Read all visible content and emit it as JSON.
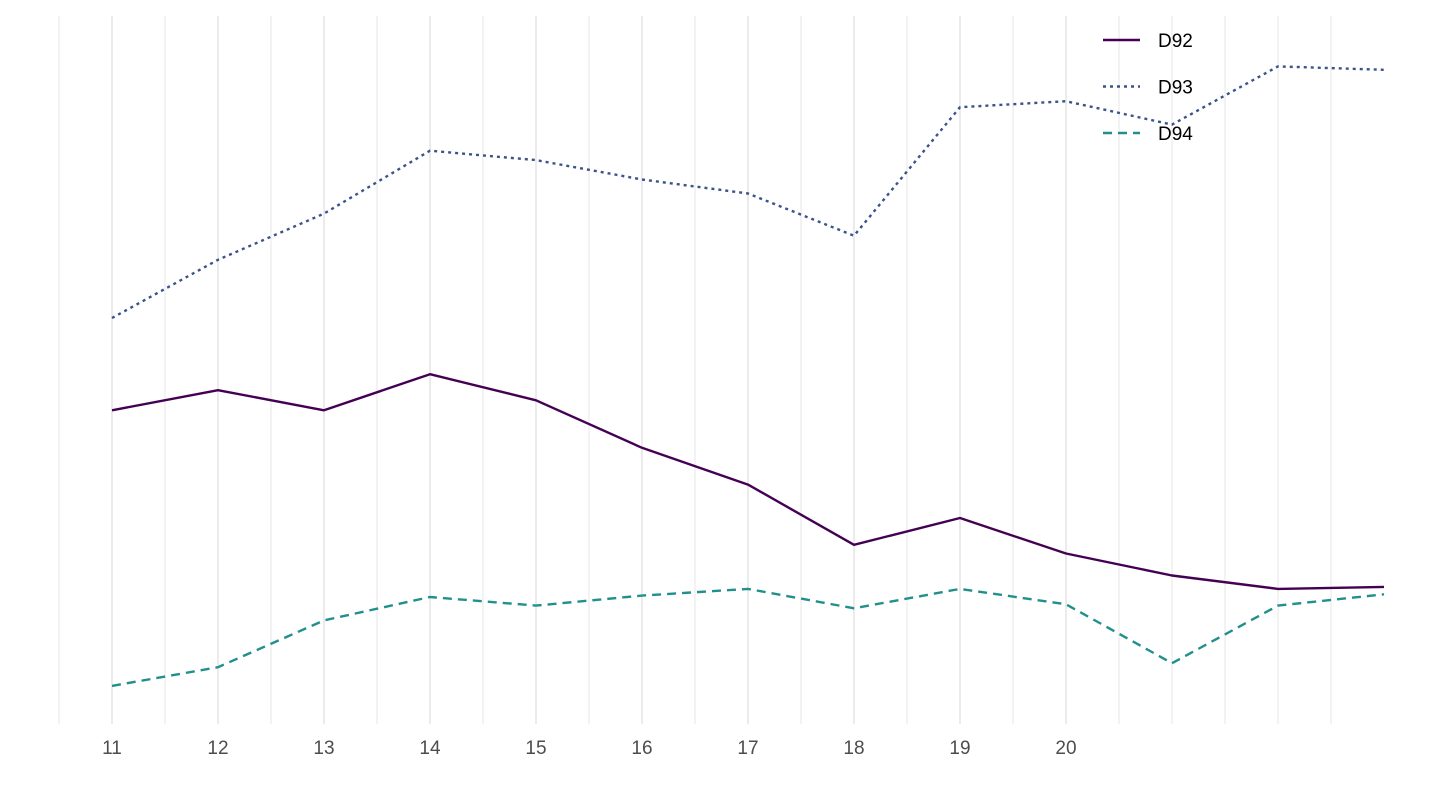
{
  "chart_data": {
    "type": "line",
    "x": [
      11,
      12,
      13,
      14,
      15,
      16,
      17,
      18,
      19,
      20,
      21,
      22,
      23
    ],
    "x_tick_labels": [
      "11",
      "12",
      "13",
      "14",
      "15",
      "16",
      "17",
      "18",
      "19",
      "20"
    ],
    "x_tick_values": [
      11,
      12,
      13,
      14,
      15,
      16,
      17,
      18,
      19,
      20
    ],
    "x_minor_ticks": [
      10.5,
      11.5,
      12.5,
      13.5,
      14.5,
      15.5,
      16.5,
      17.5,
      18.5,
      19.5,
      20.5,
      21,
      21.5,
      22,
      22.5
    ],
    "xlim": [
      10.5,
      23.0
    ],
    "ylim": [
      0,
      100
    ],
    "grid": "vertical-only",
    "legend_position": "top-right",
    "series": [
      {
        "name": "D92",
        "color": "#440154",
        "dash": "solid",
        "values": [
          44.2,
          47.2,
          44.2,
          49.6,
          45.7,
          38.6,
          33.1,
          24.1,
          28.1,
          22.8,
          19.5,
          17.5,
          17.8
        ]
      },
      {
        "name": "D93",
        "color": "#3b528b",
        "dash": "dotted",
        "values": [
          58.0,
          66.7,
          73.6,
          83.0,
          81.6,
          78.7,
          76.6,
          70.3,
          89.5,
          90.4,
          86.9,
          95.6,
          95.1
        ]
      },
      {
        "name": "D94",
        "color": "#21908c",
        "dash": "dashed",
        "values": [
          3.0,
          5.8,
          12.8,
          16.3,
          15.0,
          16.5,
          17.5,
          14.6,
          17.5,
          15.2,
          6.4,
          15.0,
          16.7
        ]
      }
    ]
  }
}
